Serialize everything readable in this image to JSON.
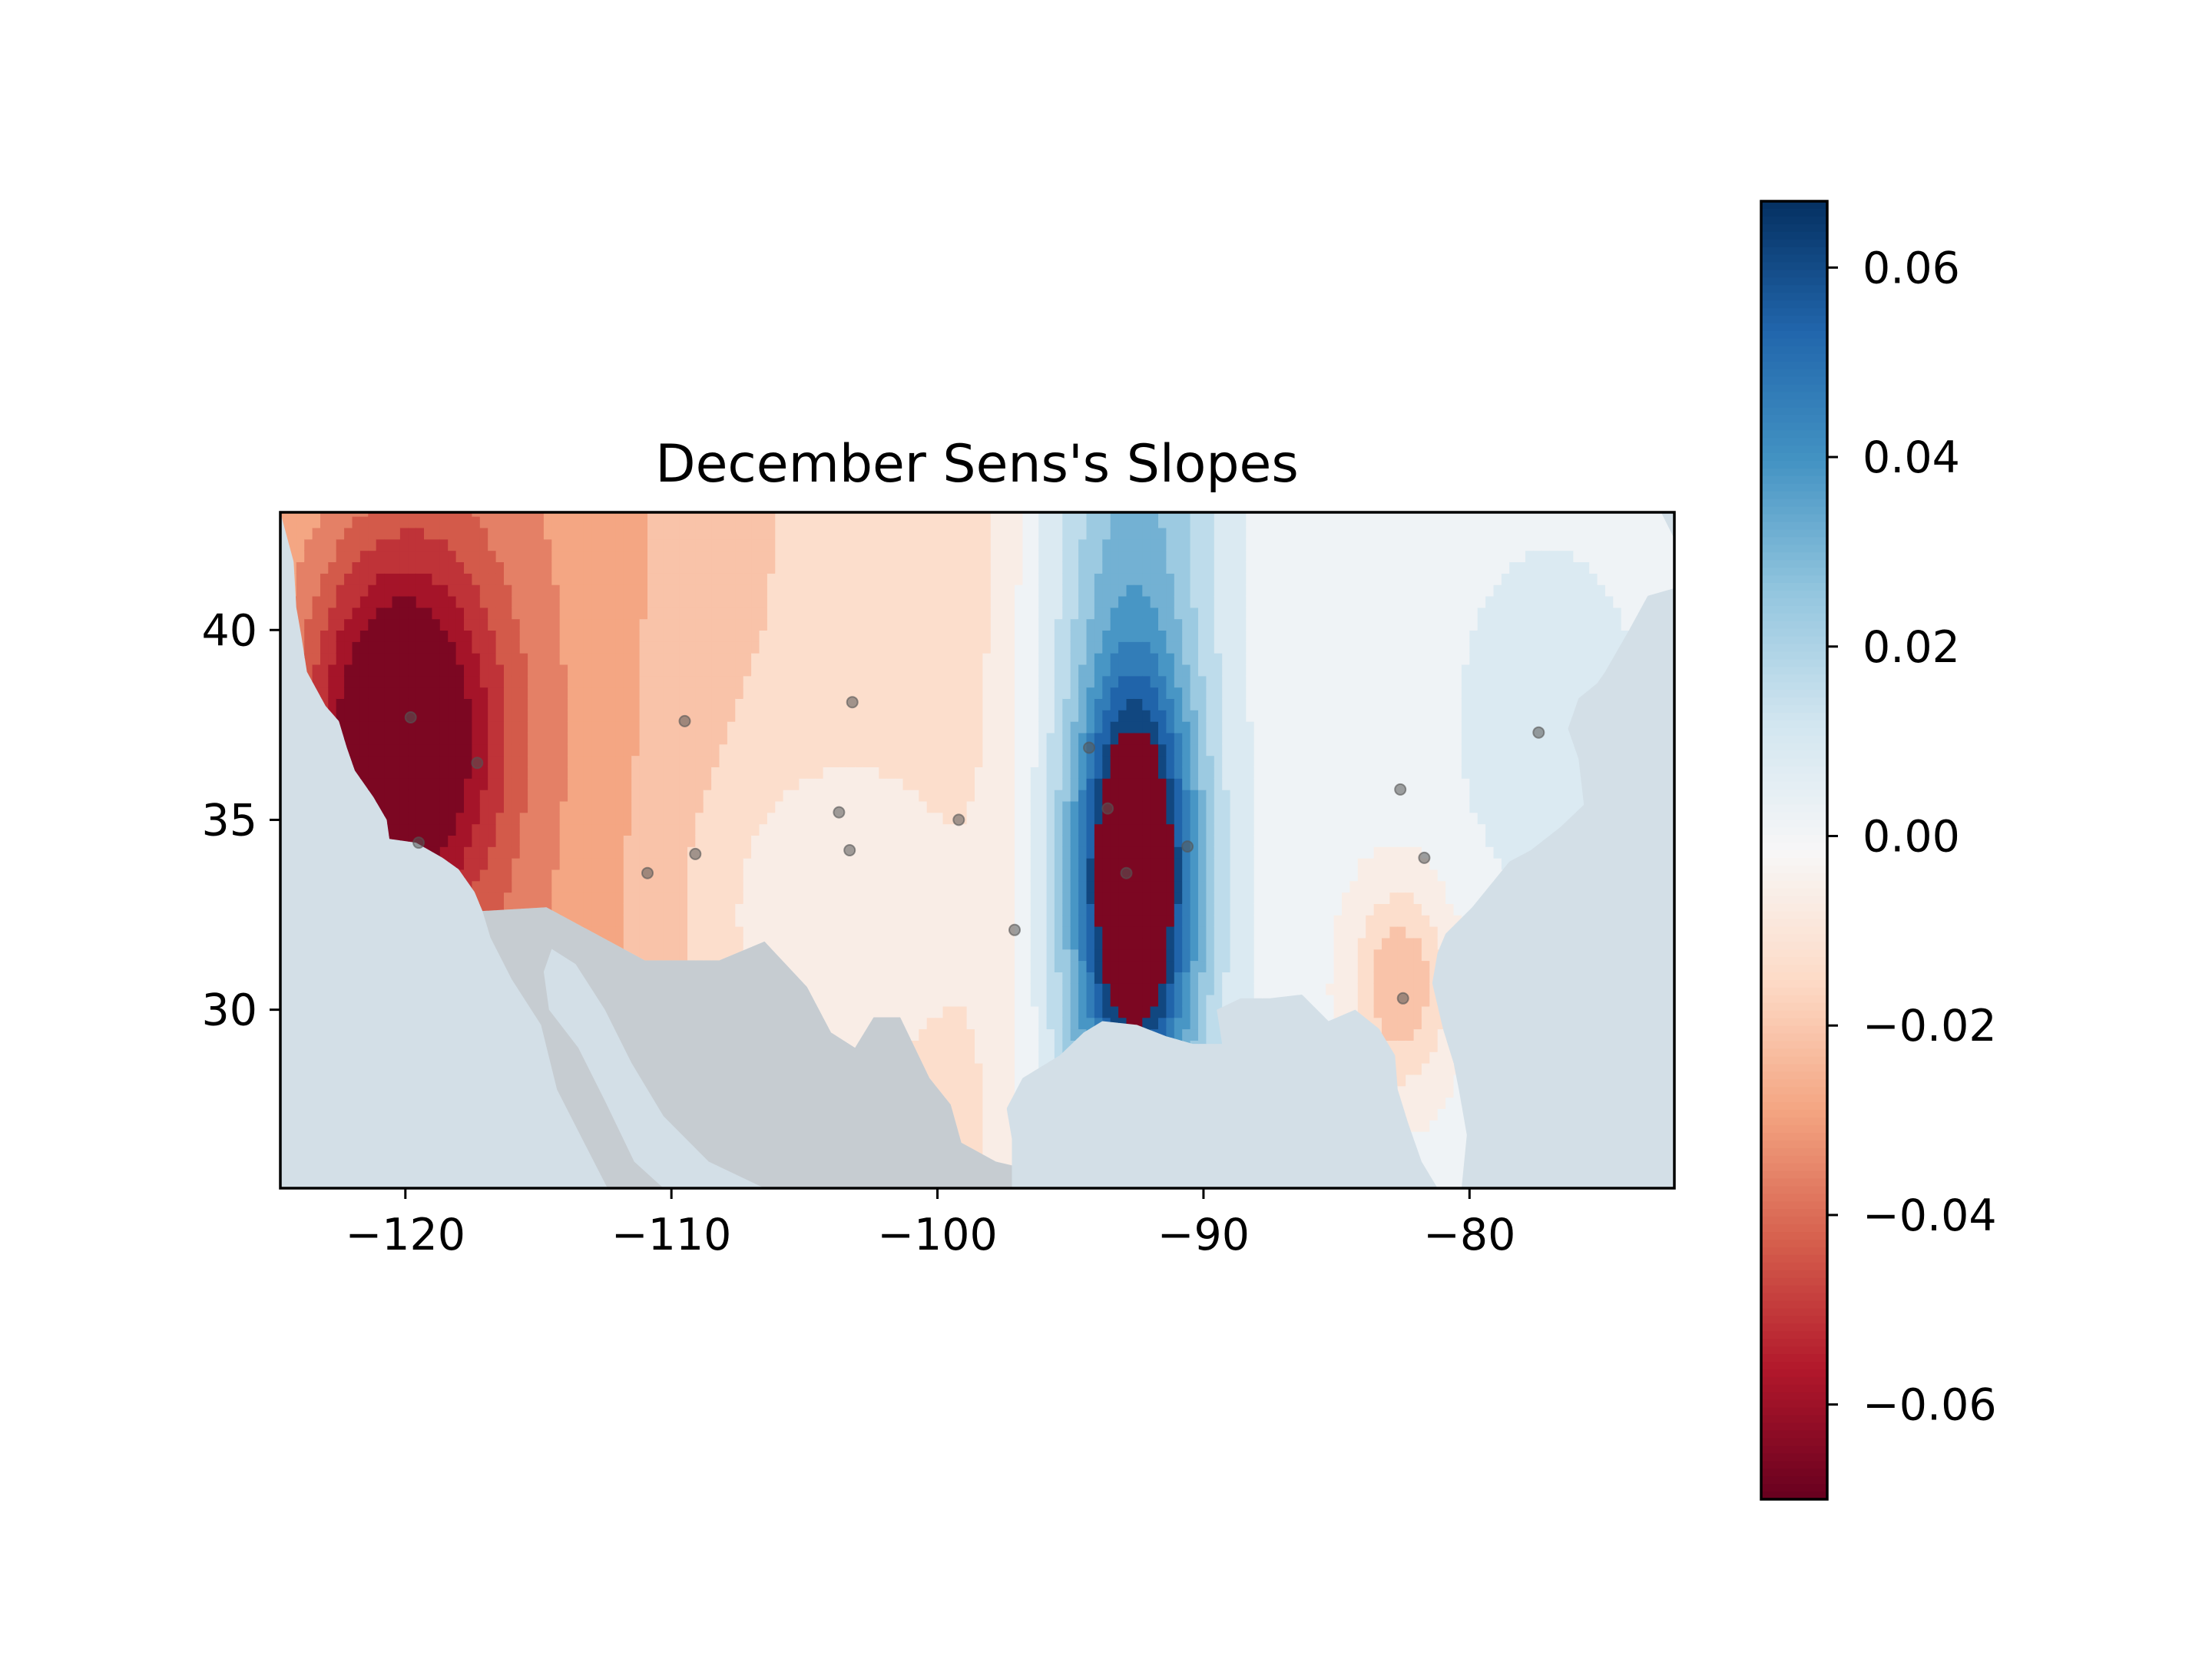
{
  "chart_data": {
    "type": "heatmap",
    "subtype": "filled-contour map",
    "title": "December Sens's Slopes",
    "xlabel": "",
    "ylabel": "",
    "xlim": [
      -124.7,
      -72.3
    ],
    "ylim": [
      25.3,
      43.1
    ],
    "xticks": [
      -120,
      -110,
      -100,
      -90,
      -80
    ],
    "xtick_labels": [
      "−120",
      "−110",
      "−100",
      "−90",
      "−80"
    ],
    "yticks": [
      30,
      35,
      40
    ],
    "ytick_labels": [
      "30",
      "35",
      "40"
    ],
    "grid": false,
    "colormap": "RdBu",
    "colorbar": {
      "range": [
        -0.07,
        0.067
      ],
      "ticks": [
        0.06,
        0.04,
        0.02,
        0.0,
        -0.02,
        -0.04,
        -0.06
      ],
      "tick_labels": [
        "0.06",
        "0.04",
        "0.02",
        "0.00",
        "−0.02",
        "−0.04",
        "−0.06"
      ]
    },
    "colors": {
      "ocean": "#d3dfe7",
      "land": "#c6ccd1",
      "station": "#555555"
    },
    "stations": [
      {
        "lon": -119.8,
        "lat": 37.7
      },
      {
        "lon": -117.3,
        "lat": 36.5
      },
      {
        "lon": -119.5,
        "lat": 34.4
      },
      {
        "lon": -109.5,
        "lat": 37.6
      },
      {
        "lon": -103.2,
        "lat": 38.1
      },
      {
        "lon": -103.7,
        "lat": 35.2
      },
      {
        "lon": -103.3,
        "lat": 34.2
      },
      {
        "lon": -109.1,
        "lat": 34.1
      },
      {
        "lon": -110.9,
        "lat": 33.6
      },
      {
        "lon": -99.2,
        "lat": 35.0
      },
      {
        "lon": -97.1,
        "lat": 32.1
      },
      {
        "lon": -94.3,
        "lat": 36.9
      },
      {
        "lon": -93.6,
        "lat": 35.3
      },
      {
        "lon": -92.9,
        "lat": 33.6
      },
      {
        "lon": -90.6,
        "lat": 34.3
      },
      {
        "lon": -82.6,
        "lat": 35.8
      },
      {
        "lon": -81.7,
        "lat": 34.0
      },
      {
        "lon": -82.5,
        "lat": 30.3
      },
      {
        "lon": -77.4,
        "lat": 37.3
      }
    ]
  }
}
